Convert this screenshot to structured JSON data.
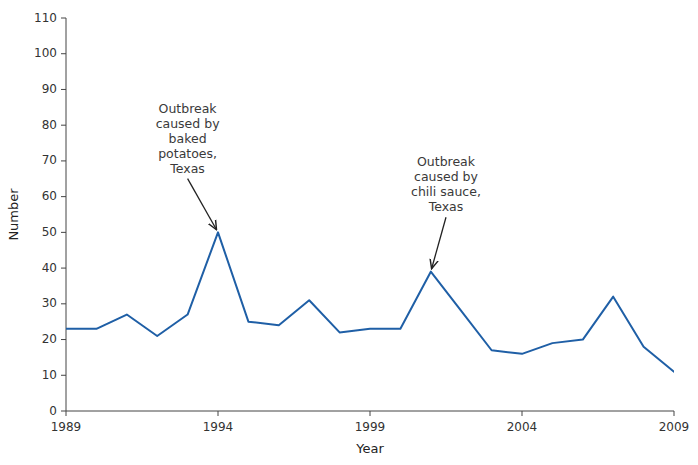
{
  "chart_data": {
    "type": "line",
    "x": [
      1989,
      1990,
      1991,
      1992,
      1993,
      1994,
      1995,
      1996,
      1997,
      1998,
      1999,
      2000,
      2001,
      2002,
      2003,
      2004,
      2005,
      2006,
      2007,
      2008,
      2009
    ],
    "values": [
      23,
      23,
      27,
      21,
      27,
      50,
      25,
      24,
      31,
      22,
      23,
      23,
      39,
      28,
      17,
      16,
      19,
      20,
      32,
      18,
      11
    ],
    "color": "#1f5fa6",
    "xlabel": "Year",
    "ylabel": "Number",
    "xlim": [
      1989,
      2009
    ],
    "xticks": [
      1989,
      1994,
      1999,
      2004,
      2009
    ],
    "ylim": [
      0,
      110
    ],
    "yticks": [
      0,
      10,
      20,
      30,
      40,
      50,
      60,
      70,
      80,
      90,
      100,
      110
    ],
    "annotations": [
      {
        "text": "Outbreak\ncaused by\nbaked\npotatoes,\nTexas",
        "xy": [
          1994,
          50
        ],
        "xytext": [
          1993.0,
          87
        ]
      },
      {
        "text": "Outbreak\ncaused by\nchili sauce,\nTexas",
        "xy": [
          2001,
          39
        ],
        "xytext": [
          2001.5,
          72
        ]
      }
    ]
  }
}
